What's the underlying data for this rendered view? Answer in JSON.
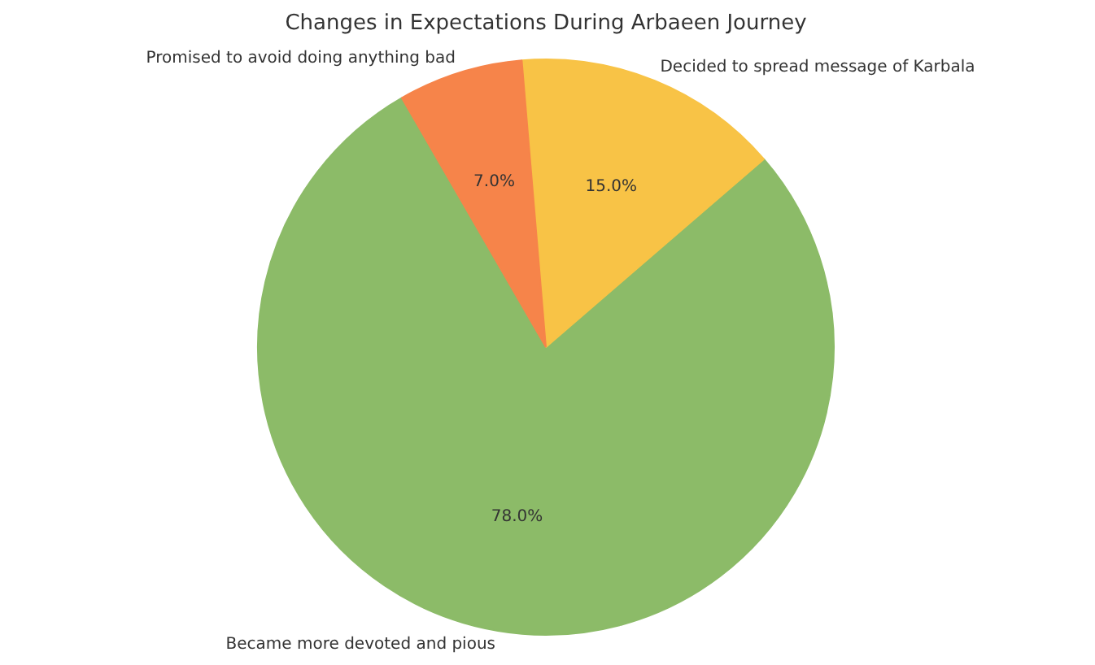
{
  "chart_data": {
    "type": "pie",
    "title": "Changes in Expectations During Arbaeen Journey",
    "categories": [
      "Became more devoted and pious",
      "Decided to spread message of Karbala",
      "Promised to avoid doing anything bad"
    ],
    "values": [
      78.0,
      15.0,
      7.0
    ],
    "value_labels": [
      "78.0%",
      "15.0%",
      "7.0%"
    ],
    "colors": [
      "#8cbb68",
      "#f8c346",
      "#f6844a"
    ]
  }
}
